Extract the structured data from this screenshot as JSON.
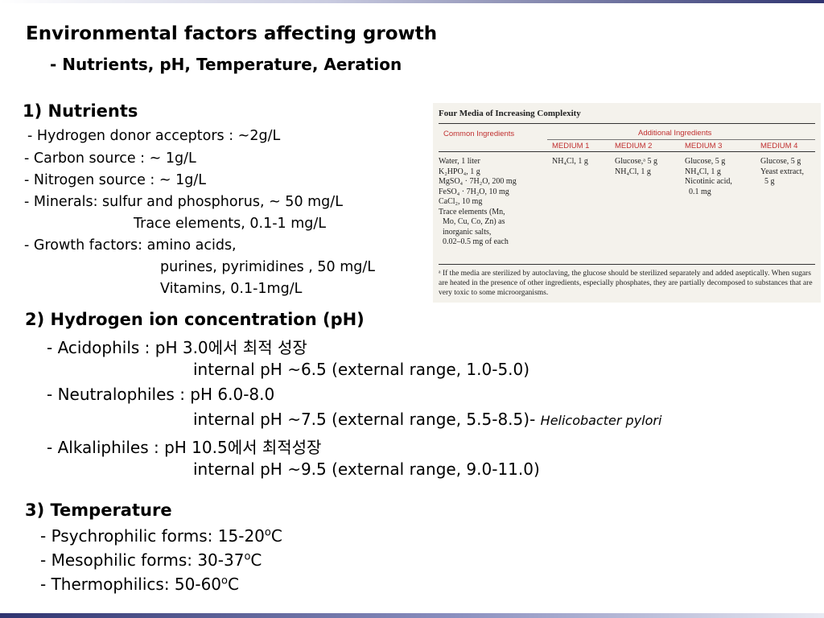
{
  "title": "Environmental factors affecting growth",
  "subtitle": "- Nutrients, pH, Temperature, Aeration",
  "nutrients": {
    "heading": "1) Nutrients",
    "lines": [
      "- Hydrogen donor acceptors : ~2g/L",
      "- Carbon source : ~ 1g/L",
      "- Nitrogen source : ~ 1g/L",
      "- Minerals: sulfur and phosphorus, ~ 50 mg/L",
      "Trace elements, 0.1-1 mg/L",
      "- Growth factors: amino acids,",
      "purines, pyrimidines , 50 mg/L",
      "Vitamins, 0.1-1mg/L"
    ]
  },
  "ph": {
    "heading": "2) Hydrogen ion concentration (pH)",
    "acido": "- Acidophils : pH 3.0에서 최적 성장",
    "acido_internal": "internal pH ~6.5 (external range, 1.0-5.0)",
    "neutro": "- Neutralophiles : pH 6.0-8.0",
    "neutro_internal": "internal pH ~7.5 (external range, 5.5-8.5)-",
    "neutro_species": "Helicobacter pylori",
    "alkali": "- Alkaliphiles : pH 10.5에서 최적성장",
    "alkali_internal": "internal pH ~9.5 (external range, 9.0-11.0)"
  },
  "temperature": {
    "heading": "3) Temperature",
    "psychro": "- Psychrophilic forms: 15-20",
    "meso": "- Mesophilic forms: 30-37",
    "thermo": "- Thermophilics: 50-60",
    "degree_sup": "o",
    "unit": "C"
  },
  "table": {
    "caption": "Four Media of Increasing Complexity",
    "common_header": "Common Ingredients",
    "additional_header": "Additional Ingredients",
    "medium_headers": [
      "MEDIUM 1",
      "MEDIUM 2",
      "MEDIUM 3",
      "MEDIUM 4"
    ],
    "common_items": "Water, 1 liter\nK₂HPO₄, 1 g\nMgSO₄ · 7H₂O, 200 mg\nFeSO₄ · 7H₂O, 10 mg\nCaCl₂, 10 mg\nTrace elements (Mn,\n  Mo, Cu, Co, Zn) as\n  inorganic salts,\n  0.02–0.5 mg of each",
    "medium1": "NH₄Cl, 1 g",
    "medium2": "Glucose,ᵃ 5 g\nNH₄Cl, 1 g",
    "medium3": "Glucose, 5 g\nNH₄Cl, 1 g\nNicotinic acid,\n  0.1 mg",
    "medium4": "Glucose, 5 g\nYeast extract,\n  5 g",
    "footnote": "ᵃ If the media are sterilized by autoclaving, the glucose should be sterilized separately and added aseptically. When sugars are heated in the presence of other ingredients, especially phosphates, they are partially decomposed to substances that are very toxic to some microorganisms."
  }
}
